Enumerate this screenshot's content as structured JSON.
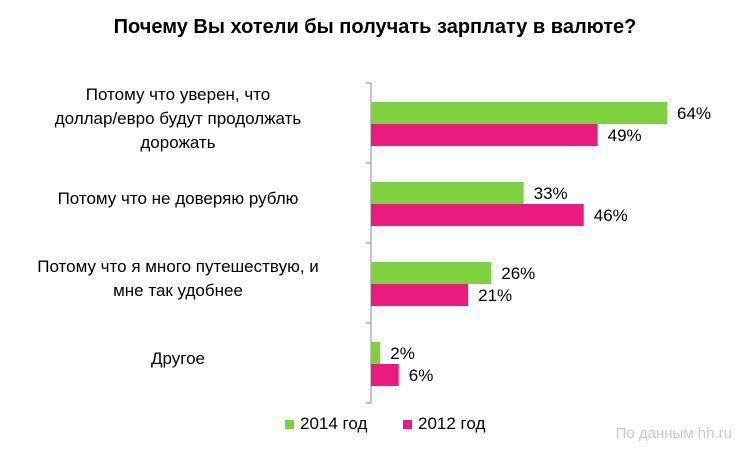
{
  "chart_data": {
    "type": "bar",
    "orientation": "horizontal",
    "title": "Почему Вы хотели бы получать зарплату в валюте?",
    "categories": [
      "Потому что уверен, что доллар/евро будут продолжать дорожать",
      "Потому что не доверяю рублю",
      "Потому что я много путешествую, и мне так удобнее",
      "Другое"
    ],
    "category_lines": [
      [
        "Потому что уверен, что",
        "доллар/евро будут продолжать",
        "дорожать"
      ],
      [
        "Потому что не доверяю рублю"
      ],
      [
        "Потому что я много путешествую, и",
        "мне так удобнее"
      ],
      [
        "Другое"
      ]
    ],
    "series": [
      {
        "name": "2014 год",
        "color": "#7ed23f",
        "values": [
          64,
          33,
          26,
          2
        ],
        "labels": [
          "64%",
          "33%",
          "26%",
          "2%"
        ]
      },
      {
        "name": "2012 год",
        "color": "#ea1a7f",
        "values": [
          49,
          46,
          21,
          6
        ],
        "labels": [
          "49%",
          "46%",
          "21%",
          "6%"
        ]
      }
    ],
    "xlim": [
      0,
      64
    ],
    "unit": "%",
    "grid": false,
    "legend_position": "bottom"
  },
  "source": "По данным  hh.ru"
}
